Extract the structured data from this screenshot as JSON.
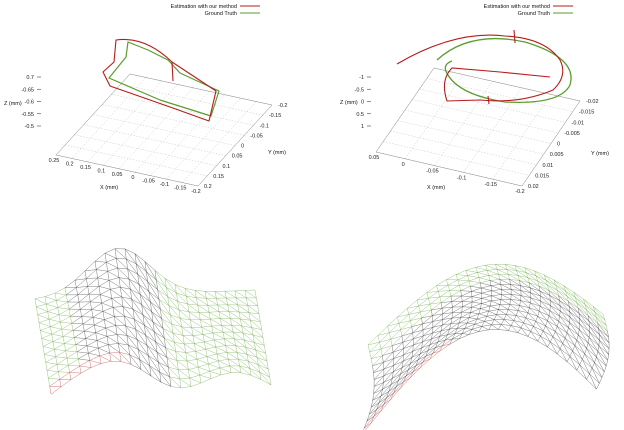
{
  "figure": {
    "legend": {
      "estimation_label": "Estimation with our method",
      "ground_truth_label": "Ground Truth"
    },
    "colors": {
      "estimation": "#b71c1c",
      "ground_truth": "#5a9e2e",
      "grid": "#c8c8c8",
      "mesh": "#222222"
    }
  },
  "chart_data": [
    {
      "type": "line3d",
      "series": [
        {
          "name": "Estimation with our method"
        },
        {
          "name": "Ground Truth"
        }
      ],
      "axes": {
        "x": {
          "label": "X (mm)",
          "ticks": [
            "0.25",
            "0.2",
            "0.15",
            "0.1",
            "0.05",
            "0",
            "-0.05",
            "-0.1",
            "-0.15",
            "-0.2"
          ]
        },
        "y": {
          "label": "Y (mm)",
          "ticks": [
            "-0.2",
            "-0.15",
            "-0.1",
            "-0.05",
            "0",
            "0.05",
            "0.1",
            "0.15",
            "0.2"
          ]
        },
        "z": {
          "label": "Z (mm)",
          "ticks": [
            "0.7",
            "-0.65",
            "-0.6",
            "-0.55",
            "-0.5"
          ]
        }
      }
    },
    {
      "type": "line3d",
      "series": [
        {
          "name": "Estimation with our method"
        },
        {
          "name": "Ground Truth"
        }
      ],
      "axes": {
        "x": {
          "label": "X (mm)",
          "ticks": [
            "0.05",
            "0",
            "-0.05",
            "-0.1",
            "-0.15",
            "-0.2"
          ]
        },
        "y": {
          "label": "Y (mm)",
          "ticks": [
            "-0.02",
            "-0.015",
            "-0.01",
            "-0.005",
            "0",
            "0.005",
            "0.01",
            "0.015",
            "0.02"
          ]
        },
        "z": {
          "label": "Z (mm)",
          "ticks": [
            "-1",
            "-0.5",
            "0",
            "0.5",
            "1"
          ]
        }
      }
    }
  ]
}
